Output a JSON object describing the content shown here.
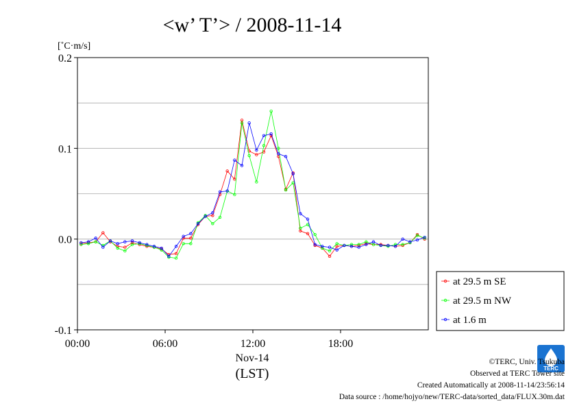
{
  "chart_data": {
    "type": "line",
    "title": "<w’ T’> / 2008-11-14",
    "ylabel": "[˚C·m/s]",
    "ylim": [
      -0.1,
      0.2
    ],
    "yticks": [
      {
        "value": 0.2,
        "label": "0.2"
      },
      {
        "value": 0.1,
        "label": "0.1"
      },
      {
        "value": 0.0,
        "label": "0.0"
      },
      {
        "value": -0.1,
        "label": "-0.1"
      }
    ],
    "xlim": [
      0,
      24
    ],
    "xticks": [
      {
        "value": 0,
        "label": "00:00"
      },
      {
        "value": 6,
        "label": "06:00"
      },
      {
        "value": 12,
        "label": "12:00"
      },
      {
        "value": 18,
        "label": "18:00"
      }
    ],
    "xlabel_date": "Nov-14",
    "xlabel": "(LST)",
    "grid": true,
    "legend_position": "right-bottom-outside",
    "x": [
      0.25,
      0.75,
      1.25,
      1.75,
      2.25,
      2.75,
      3.25,
      3.75,
      4.25,
      4.75,
      5.25,
      5.75,
      6.25,
      6.75,
      7.25,
      7.75,
      8.25,
      8.75,
      9.25,
      9.75,
      10.25,
      10.75,
      11.25,
      11.75,
      12.25,
      12.75,
      13.25,
      13.75,
      14.25,
      14.75,
      15.25,
      15.75,
      16.25,
      16.75,
      17.25,
      17.75,
      18.25,
      18.75,
      19.25,
      19.75,
      20.25,
      20.75,
      21.25,
      21.75,
      22.25,
      22.75,
      23.25,
      23.75
    ],
    "series": [
      {
        "name": "at 29.5 m SE",
        "color": "#ff0000",
        "values": [
          -0.005,
          -0.004,
          -0.003,
          0.007,
          -0.003,
          -0.008,
          -0.009,
          -0.004,
          -0.006,
          -0.008,
          -0.009,
          -0.011,
          -0.017,
          -0.016,
          0.001,
          0.001,
          0.016,
          0.025,
          0.026,
          0.049,
          0.075,
          0.066,
          0.131,
          0.097,
          0.093,
          0.096,
          0.114,
          0.091,
          0.055,
          0.073,
          0.009,
          0.006,
          -0.007,
          -0.01,
          -0.019,
          -0.008,
          -0.007,
          -0.008,
          -0.007,
          -0.005,
          -0.006,
          -0.006,
          -0.007,
          -0.008,
          -0.007,
          -0.004,
          0.005,
          0.0
        ]
      },
      {
        "name": "at 29.5 m NW",
        "color": "#00ff00",
        "values": [
          -0.006,
          -0.005,
          -0.003,
          -0.007,
          -0.002,
          -0.01,
          -0.013,
          -0.006,
          -0.005,
          -0.007,
          -0.009,
          -0.012,
          -0.02,
          -0.021,
          -0.005,
          -0.005,
          0.018,
          0.026,
          0.017,
          0.024,
          0.053,
          0.049,
          0.128,
          0.092,
          0.063,
          0.103,
          0.141,
          0.1,
          0.054,
          0.062,
          0.012,
          0.016,
          0.005,
          -0.01,
          -0.013,
          -0.005,
          -0.007,
          -0.006,
          -0.006,
          -0.003,
          -0.006,
          -0.007,
          -0.008,
          -0.006,
          -0.006,
          -0.004,
          0.004,
          0.001
        ]
      },
      {
        "name": "at 1.6 m",
        "color": "#0000ff",
        "values": [
          -0.004,
          -0.003,
          0.001,
          -0.009,
          -0.002,
          -0.005,
          -0.003,
          -0.002,
          -0.004,
          -0.006,
          -0.008,
          -0.01,
          -0.019,
          -0.008,
          0.003,
          0.006,
          0.017,
          0.025,
          0.029,
          0.052,
          0.053,
          0.087,
          0.081,
          0.128,
          0.098,
          0.114,
          0.116,
          0.094,
          0.091,
          0.072,
          0.028,
          0.022,
          -0.006,
          -0.008,
          -0.009,
          -0.012,
          -0.007,
          -0.008,
          -0.009,
          -0.006,
          -0.003,
          -0.007,
          -0.007,
          -0.008,
          0.0,
          -0.003,
          -0.001,
          0.002
        ]
      }
    ]
  },
  "footer": {
    "copyright": "©TERC, Univ. Tsukuba",
    "observed": "Observed at TERC Tower site",
    "created": "Created Automatically at 2008-11-14/23:56:14",
    "source": "Data source : /home/hojyo/new/TERC-data/sorted_data/FLUX.30m.dat"
  },
  "logo": {
    "text": "TERC",
    "color": "#1a73d1"
  }
}
